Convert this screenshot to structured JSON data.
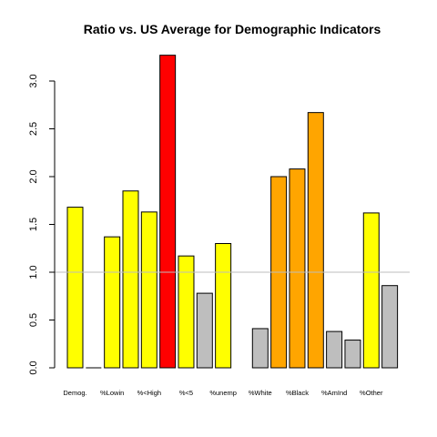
{
  "chart_data": {
    "type": "bar",
    "title": "Ratio vs. US Average for Demographic Indicators",
    "xlabel": "",
    "ylabel": "",
    "ylim": [
      0,
      3.3
    ],
    "yticks": [
      "0.0",
      "0.5",
      "1.0",
      "1.5",
      "2.0",
      "2.5",
      "3.0"
    ],
    "reference_line": 1.0,
    "reference_color": "#bdbdbd",
    "grid": false,
    "bars": [
      {
        "value": 1.68,
        "color": "#ffff00"
      },
      {
        "value": 0.0,
        "color": "#ffff00"
      },
      {
        "value": 1.37,
        "color": "#ffff00"
      },
      {
        "value": 1.85,
        "color": "#ffff00"
      },
      {
        "value": 1.63,
        "color": "#ffff00"
      },
      {
        "value": 3.27,
        "color": "#ff0000"
      },
      {
        "value": 1.17,
        "color": "#ffff00"
      },
      {
        "value": 0.78,
        "color": "#bebebe"
      },
      {
        "value": 1.3,
        "color": "#ffff00"
      },
      {
        "value": null,
        "color": ""
      },
      {
        "value": 0.41,
        "color": "#bebebe"
      },
      {
        "value": 2.0,
        "color": "#ffa500"
      },
      {
        "value": 2.08,
        "color": "#ffa500"
      },
      {
        "value": 2.67,
        "color": "#ffa500"
      },
      {
        "value": 0.38,
        "color": "#bebebe"
      },
      {
        "value": 0.29,
        "color": "#bebebe"
      },
      {
        "value": 1.62,
        "color": "#ffff00"
      },
      {
        "value": 0.86,
        "color": "#bebebe"
      }
    ],
    "category_labels": [
      {
        "label": "Demog.",
        "bar": 0
      },
      {
        "label": "%Lowin",
        "bar": 2
      },
      {
        "label": "%<High",
        "bar": 4
      },
      {
        "label": "%<5",
        "bar": 6
      },
      {
        "label": "%unemp",
        "bar": 8
      },
      {
        "label": "%White",
        "bar": 10
      },
      {
        "label": "%Black",
        "bar": 12
      },
      {
        "label": "%AmInd",
        "bar": 14
      },
      {
        "label": "%Other",
        "bar": 16
      }
    ]
  }
}
